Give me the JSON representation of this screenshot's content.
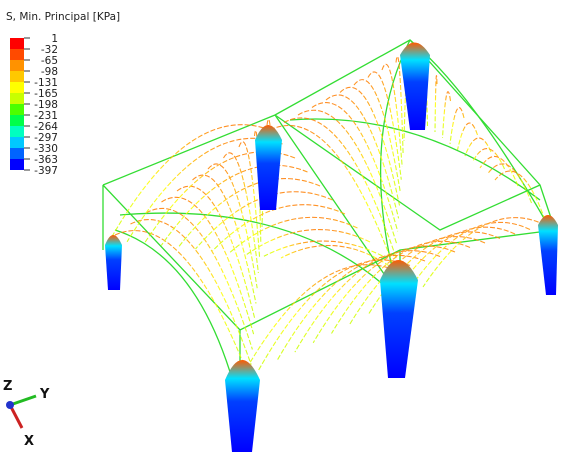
{
  "legend": {
    "title": "S, Min. Principal [KPa]",
    "labels": [
      "1",
      "-32",
      "-65",
      "-98",
      "-131",
      "-165",
      "-198",
      "-231",
      "-264",
      "-297",
      "-330",
      "-363",
      "-397"
    ],
    "colors": [
      "#ff0000",
      "#ff4a00",
      "#ff9200",
      "#ffc800",
      "#ffff00",
      "#c8ff00",
      "#4cff00",
      "#00ff4a",
      "#00ffc0",
      "#00c8ff",
      "#0064ff",
      "#0000ff"
    ]
  },
  "triad": {
    "z": "Z",
    "y": "Y",
    "x": "X"
  }
}
